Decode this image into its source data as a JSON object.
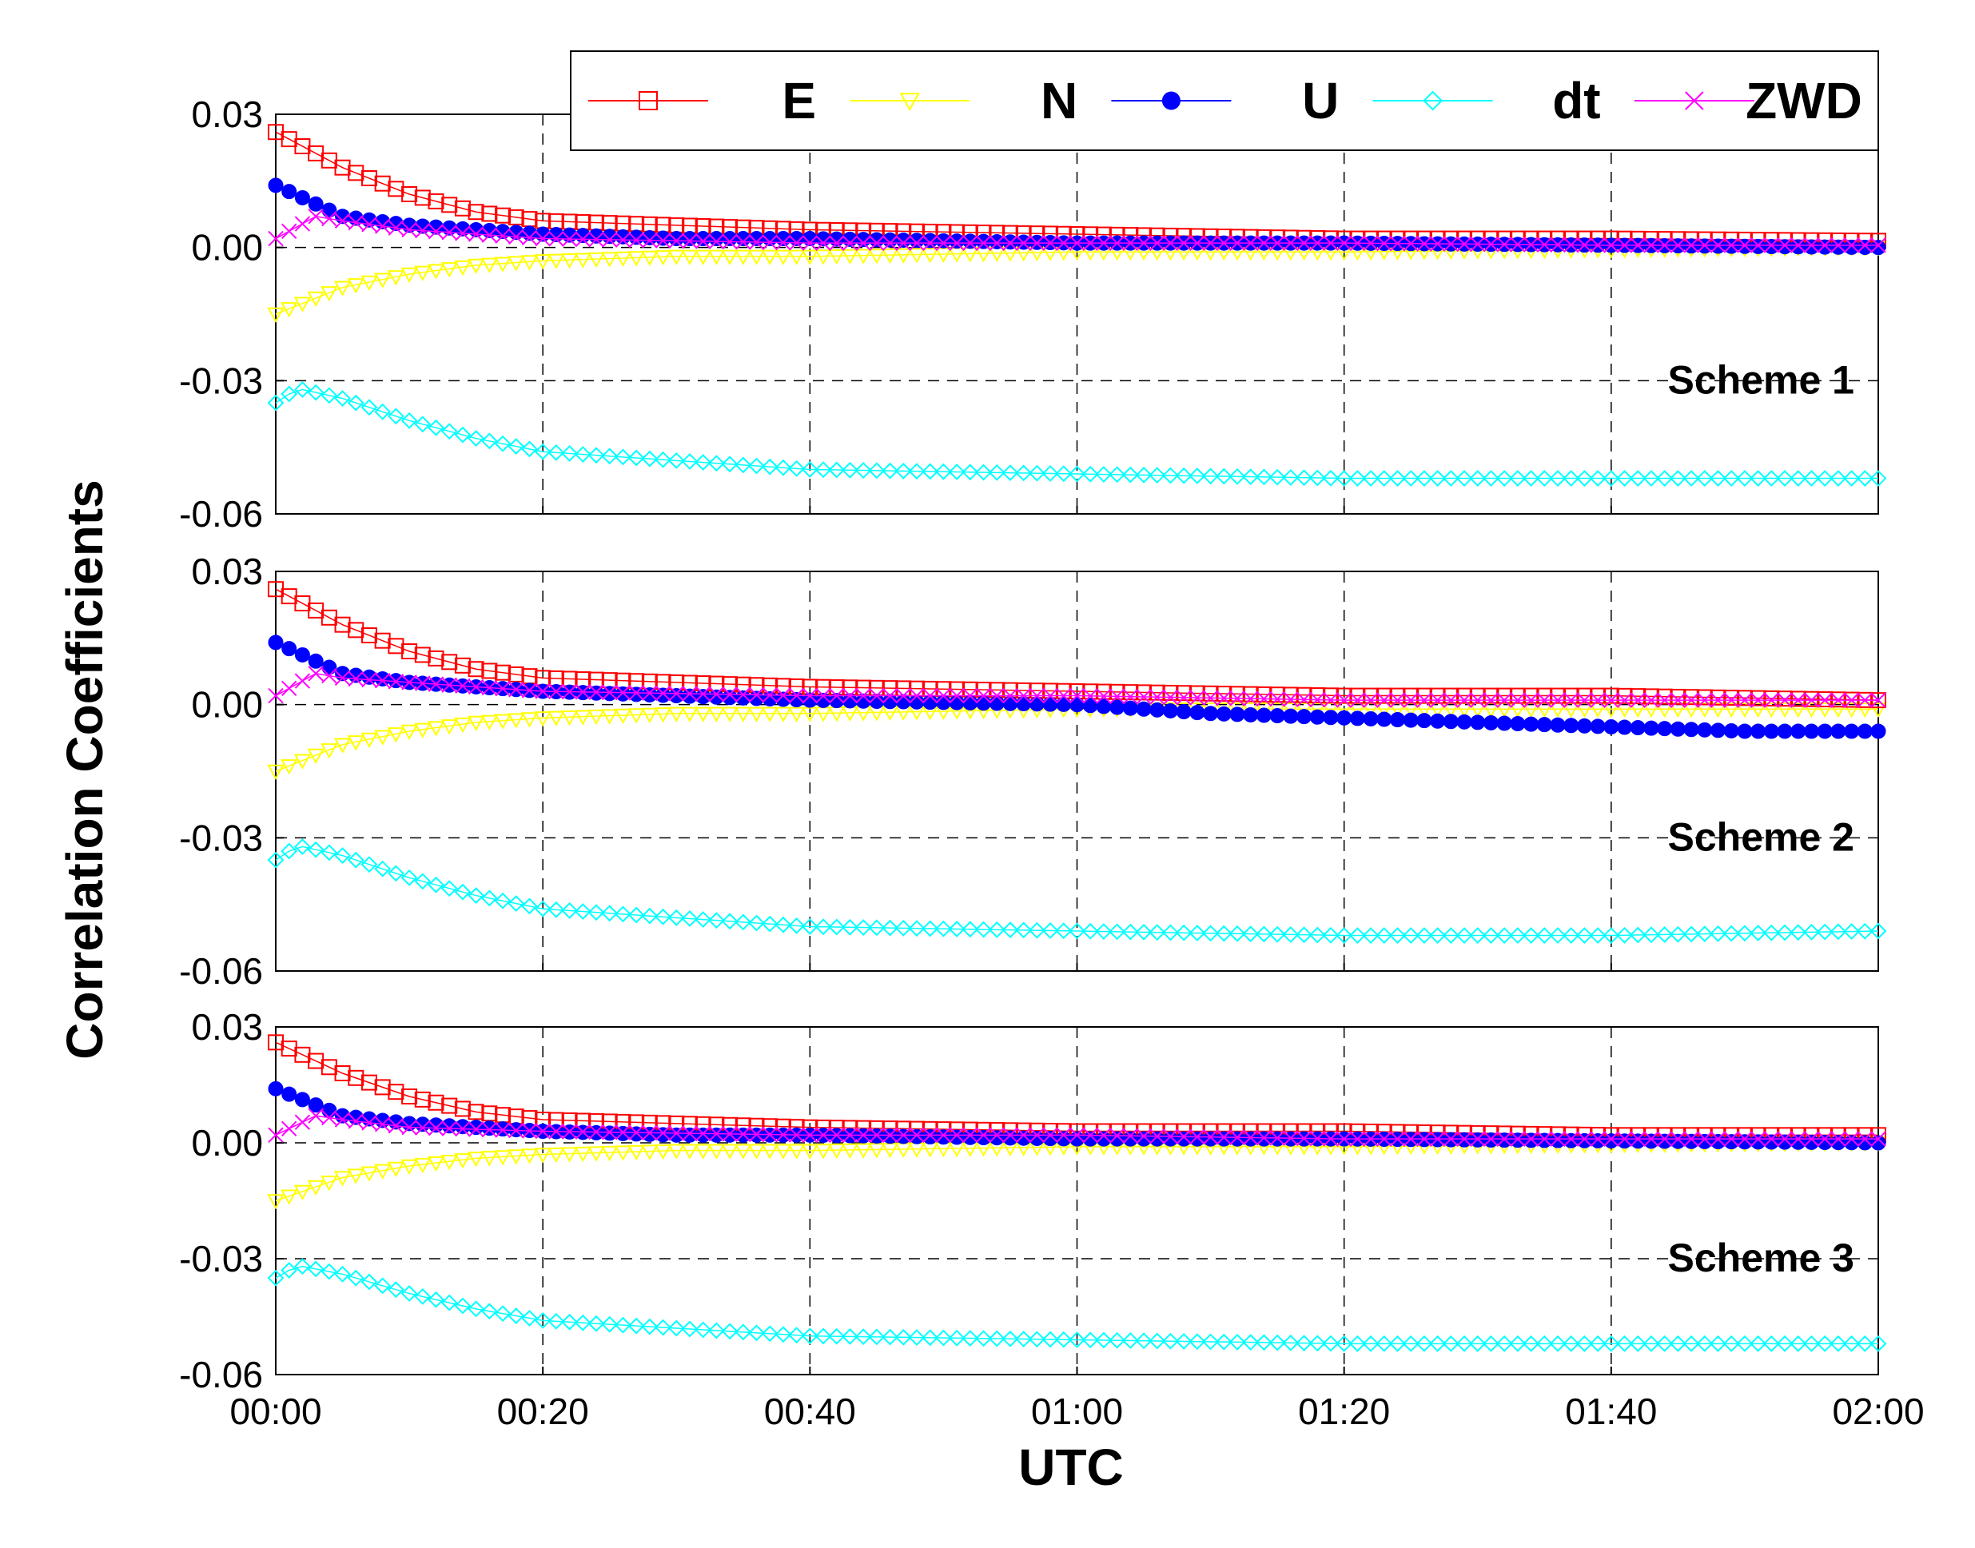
{
  "chart_data": {
    "type": "scatter",
    "xlabel": "UTC",
    "ylabel": "Correlation Coefficients",
    "x_ticks": [
      "00:00",
      "00:20",
      "00:40",
      "01:00",
      "01:20",
      "01:40",
      "02:00"
    ],
    "xlim_minutes": [
      0,
      120
    ],
    "y_ticks": [
      "0.03",
      "0.00",
      "-0.03",
      "-0.06"
    ],
    "ylim": [
      -0.06,
      0.03
    ],
    "grid": "dashed",
    "legend_position": "top-right",
    "legend": [
      {
        "name": "E",
        "color": "#ff0000",
        "marker": "square"
      },
      {
        "name": "N",
        "color": "#ffff00",
        "marker": "triangle-down"
      },
      {
        "name": "U",
        "color": "#0000ff",
        "marker": "circle-filled"
      },
      {
        "name": "dt",
        "color": "#00ffff",
        "marker": "diamond"
      },
      {
        "name": "ZWD",
        "color": "#ff00ff",
        "marker": "x"
      }
    ],
    "panels": [
      {
        "label": "Scheme 1",
        "series": [
          {
            "name": "E",
            "x": [
              0,
              5,
              10,
              15,
              20,
              30,
              40,
              60,
              80,
              100,
              120
            ],
            "y": [
              0.026,
              0.018,
              0.012,
              0.008,
              0.006,
              0.005,
              0.004,
              0.003,
              0.002,
              0.002,
              0.0015
            ]
          },
          {
            "name": "N",
            "x": [
              0,
              5,
              10,
              15,
              20,
              30,
              40,
              60,
              80,
              100,
              120
            ],
            "y": [
              -0.015,
              -0.009,
              -0.006,
              -0.004,
              -0.003,
              -0.002,
              -0.002,
              -0.001,
              -0.001,
              -0.0005,
              0.0
            ]
          },
          {
            "name": "U",
            "x": [
              0,
              5,
              10,
              15,
              20,
              30,
              40,
              60,
              80,
              100,
              120
            ],
            "y": [
              0.014,
              0.007,
              0.005,
              0.004,
              0.003,
              0.002,
              0.002,
              0.001,
              0.001,
              0.0005,
              0.0
            ]
          },
          {
            "name": "dt",
            "x": [
              0,
              1,
              2,
              5,
              10,
              15,
              20,
              30,
              40,
              60,
              80,
              100,
              120
            ],
            "y": [
              -0.035,
              -0.033,
              -0.032,
              -0.034,
              -0.039,
              -0.043,
              -0.046,
              -0.048,
              -0.05,
              -0.051,
              -0.052,
              -0.052,
              -0.052
            ]
          },
          {
            "name": "ZWD",
            "x": [
              0,
              3,
              5,
              10,
              20,
              40,
              60,
              80,
              100,
              120
            ],
            "y": [
              0.002,
              0.007,
              0.006,
              0.004,
              0.002,
              0.001,
              0.001,
              0.001,
              0.0005,
              0.0005
            ]
          }
        ]
      },
      {
        "label": "Scheme 2",
        "series": [
          {
            "name": "E",
            "x": [
              0,
              5,
              10,
              15,
              20,
              30,
              40,
              60,
              80,
              100,
              120
            ],
            "y": [
              0.026,
              0.018,
              0.012,
              0.008,
              0.006,
              0.005,
              0.004,
              0.003,
              0.002,
              0.002,
              0.001
            ]
          },
          {
            "name": "N",
            "x": [
              0,
              5,
              10,
              15,
              20,
              30,
              40,
              60,
              80,
              100,
              120
            ],
            "y": [
              -0.015,
              -0.009,
              -0.006,
              -0.004,
              -0.003,
              -0.002,
              -0.002,
              -0.001,
              -0.001,
              -0.001,
              -0.001
            ]
          },
          {
            "name": "U",
            "x": [
              0,
              5,
              10,
              15,
              20,
              30,
              40,
              60,
              70,
              80,
              90,
              100,
              110,
              120
            ],
            "y": [
              0.014,
              0.007,
              0.005,
              0.004,
              0.003,
              0.002,
              0.001,
              0.0,
              -0.002,
              -0.003,
              -0.004,
              -0.005,
              -0.006,
              -0.006
            ]
          },
          {
            "name": "dt",
            "x": [
              0,
              1,
              2,
              5,
              10,
              15,
              20,
              30,
              40,
              60,
              80,
              100,
              120
            ],
            "y": [
              -0.035,
              -0.033,
              -0.032,
              -0.034,
              -0.039,
              -0.043,
              -0.046,
              -0.048,
              -0.05,
              -0.051,
              -0.052,
              -0.052,
              -0.051
            ]
          },
          {
            "name": "ZWD",
            "x": [
              0,
              3,
              5,
              10,
              20,
              40,
              60,
              80,
              100,
              120
            ],
            "y": [
              0.002,
              0.007,
              0.006,
              0.005,
              0.003,
              0.002,
              0.002,
              0.001,
              0.001,
              0.001
            ]
          }
        ]
      },
      {
        "label": "Scheme 3",
        "series": [
          {
            "name": "E",
            "x": [
              0,
              5,
              10,
              15,
              20,
              30,
              40,
              60,
              80,
              100,
              120
            ],
            "y": [
              0.026,
              0.018,
              0.012,
              0.008,
              0.006,
              0.005,
              0.004,
              0.003,
              0.003,
              0.002,
              0.002
            ]
          },
          {
            "name": "N",
            "x": [
              0,
              5,
              10,
              15,
              20,
              30,
              40,
              60,
              80,
              100,
              120
            ],
            "y": [
              -0.015,
              -0.009,
              -0.006,
              -0.004,
              -0.003,
              -0.002,
              -0.002,
              -0.001,
              -0.001,
              -0.0005,
              0.0
            ]
          },
          {
            "name": "U",
            "x": [
              0,
              5,
              10,
              15,
              20,
              30,
              40,
              60,
              80,
              100,
              120
            ],
            "y": [
              0.014,
              0.007,
              0.005,
              0.004,
              0.003,
              0.002,
              0.002,
              0.001,
              0.001,
              0.0005,
              0.0
            ]
          },
          {
            "name": "dt",
            "x": [
              0,
              1,
              2,
              5,
              10,
              15,
              20,
              30,
              40,
              60,
              80,
              100,
              120
            ],
            "y": [
              -0.035,
              -0.033,
              -0.032,
              -0.034,
              -0.039,
              -0.043,
              -0.046,
              -0.048,
              -0.05,
              -0.051,
              -0.052,
              -0.052,
              -0.052
            ]
          },
          {
            "name": "ZWD",
            "x": [
              0,
              3,
              5,
              10,
              20,
              40,
              60,
              80,
              100,
              120
            ],
            "y": [
              0.002,
              0.007,
              0.006,
              0.004,
              0.003,
              0.002,
              0.002,
              0.001,
              0.001,
              0.001
            ]
          }
        ]
      }
    ]
  }
}
